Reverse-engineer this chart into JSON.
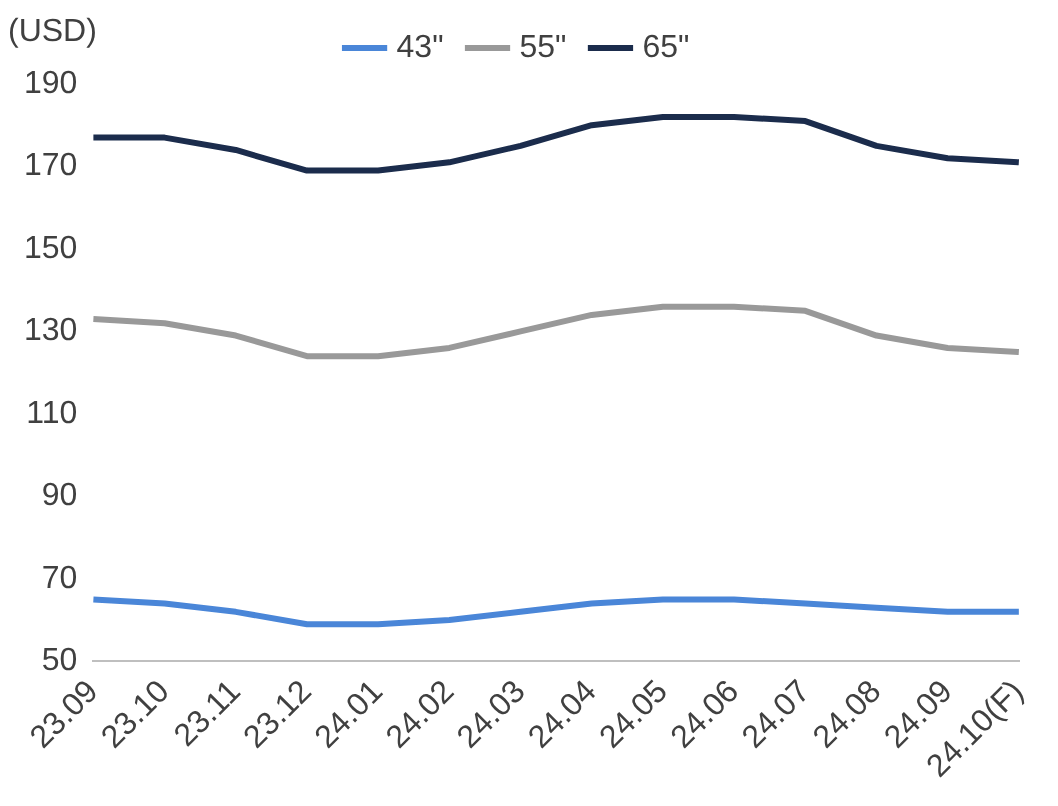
{
  "chart_data": {
    "type": "line",
    "ylabel": "(USD)",
    "categories": [
      "23.09",
      "23.10",
      "23.11",
      "23.12",
      "24.01",
      "24.02",
      "24.03",
      "24.04",
      "24.05",
      "24.06",
      "24.07",
      "24.08",
      "24.09",
      "24.10(F)"
    ],
    "series": [
      {
        "name": "43\"",
        "color": "#4a86d8",
        "values": [
          65,
          64,
          62,
          59,
          59,
          60,
          62,
          64,
          65,
          65,
          64,
          63,
          62,
          62
        ]
      },
      {
        "name": "55\"",
        "color": "#999999",
        "values": [
          133,
          132,
          129,
          124,
          124,
          126,
          130,
          134,
          136,
          136,
          135,
          129,
          126,
          125
        ]
      },
      {
        "name": "65\"",
        "color": "#1b2c4c",
        "values": [
          177,
          177,
          174,
          169,
          169,
          171,
          175,
          180,
          182,
          182,
          181,
          175,
          172,
          171
        ]
      }
    ],
    "ylim": [
      50,
      190
    ],
    "yticks": [
      50,
      70,
      90,
      110,
      130,
      150,
      170,
      190
    ],
    "grid": false,
    "legend": "top",
    "marker": "none",
    "line_style": "solid"
  }
}
